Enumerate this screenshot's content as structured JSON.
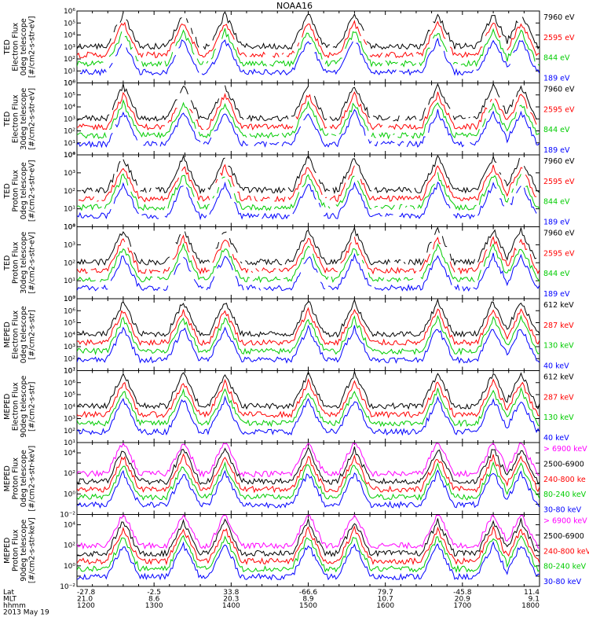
{
  "chart_data": {
    "type": "line",
    "title": "NOAA16",
    "footer": {
      "row_labels": [
        "Lat",
        "MLT",
        "hhmm",
        "2013 May 19"
      ],
      "lat": [
        "-27.8",
        "-2.5",
        "33.8",
        "-66.6",
        "79.7",
        "-45.8",
        "11.4"
      ],
      "mlt": [
        "21.0",
        "8.6",
        "20.3",
        "8.9",
        "10.7",
        "20.9",
        "9.1"
      ],
      "hhmm": [
        "1200",
        "1300",
        "1400",
        "1500",
        "1600",
        "1700",
        "1800"
      ]
    },
    "x_range": [
      "1200",
      "1800"
    ],
    "grid": false,
    "panels": [
      {
        "ylabel": [
          "TED",
          "Electron Flux",
          "0deg telescope",
          "[#/cm2-s-str-eV]"
        ],
        "ylim_exp": [
          0,
          6
        ],
        "series": [
          {
            "name": "7960 eV",
            "color": "#000000"
          },
          {
            "name": "2595 eV",
            "color": "#ff0000"
          },
          {
            "name": "844 eV",
            "color": "#00cc00"
          },
          {
            "name": "189 eV",
            "color": "#0000ff"
          }
        ]
      },
      {
        "ylabel": [
          "TED",
          "Electron Flux",
          "30deg telescope",
          "[#/cm2-s-str-eV]"
        ],
        "ylim_exp": [
          0,
          6
        ],
        "series": [
          {
            "name": "7960 eV",
            "color": "#000000"
          },
          {
            "name": "2595 eV",
            "color": "#ff0000"
          },
          {
            "name": "844 eV",
            "color": "#00cc00"
          },
          {
            "name": "189 eV",
            "color": "#0000ff"
          }
        ]
      },
      {
        "ylabel": [
          "TED",
          "Proton Flux",
          "0deg telescope",
          "[#/cm2-s-str-eV]"
        ],
        "ylim_exp": [
          0,
          4
        ],
        "series": [
          {
            "name": "7960 eV",
            "color": "#000000"
          },
          {
            "name": "2595 eV",
            "color": "#ff0000"
          },
          {
            "name": "844 eV",
            "color": "#00cc00"
          },
          {
            "name": "189 eV",
            "color": "#0000ff"
          }
        ]
      },
      {
        "ylabel": [
          "TED",
          "Proton Flux",
          "30deg telescope",
          "[#/cm2-s-str-eV]"
        ],
        "ylim_exp": [
          0,
          4
        ],
        "series": [
          {
            "name": "7960 eV",
            "color": "#000000"
          },
          {
            "name": "2595 eV",
            "color": "#ff0000"
          },
          {
            "name": "844 eV",
            "color": "#00cc00"
          },
          {
            "name": "189 eV",
            "color": "#0000ff"
          }
        ]
      },
      {
        "ylabel": [
          "MEPED",
          "Electron Flux",
          "0deg telescope",
          "[#/cm2-s-str]"
        ],
        "ylim_exp": [
          1,
          7
        ],
        "series": [
          {
            "name": "612 keV",
            "color": "#000000"
          },
          {
            "name": "287 keV",
            "color": "#ff0000"
          },
          {
            "name": "130 keV",
            "color": "#00cc00"
          },
          {
            "name": "40 keV",
            "color": "#0000ff"
          }
        ]
      },
      {
        "ylabel": [
          "MEPED",
          "Electron Flux",
          "90deg telescope",
          "[#/cm2-s-str]"
        ],
        "ylim_exp": [
          1,
          7
        ],
        "series": [
          {
            "name": "612 keV",
            "color": "#000000"
          },
          {
            "name": "287 keV",
            "color": "#ff0000"
          },
          {
            "name": "130 keV",
            "color": "#00cc00"
          },
          {
            "name": "40 keV",
            "color": "#0000ff"
          }
        ]
      },
      {
        "ylabel": [
          "MEPED",
          "Proton Flux",
          "0deg telescope",
          "[#/cm2-s-str-keV]"
        ],
        "ylim_exp": [
          -2,
          5
        ],
        "series": [
          {
            "name": "> 6900 keV",
            "color": "#ff00ff"
          },
          {
            "name": "2500-6900",
            "color": "#000000"
          },
          {
            "name": "240-800 ke",
            "color": "#ff0000"
          },
          {
            "name": "80-240 keV",
            "color": "#00cc00"
          },
          {
            "name": "30-80 keV",
            "color": "#0000ff"
          }
        ]
      },
      {
        "ylabel": [
          "MEPED",
          "Proton Flux",
          "90deg telescope",
          "[#/cm2-s-str-keV]"
        ],
        "ylim_exp": [
          -2,
          5
        ],
        "series": [
          {
            "name": "> 6900 keV",
            "color": "#ff00ff"
          },
          {
            "name": "2500-6900",
            "color": "#000000"
          },
          {
            "name": "240-800 keV",
            "color": "#ff0000"
          },
          {
            "name": "80-240 keV",
            "color": "#00cc00"
          },
          {
            "name": "30-80 keV",
            "color": "#0000ff"
          }
        ]
      }
    ]
  }
}
